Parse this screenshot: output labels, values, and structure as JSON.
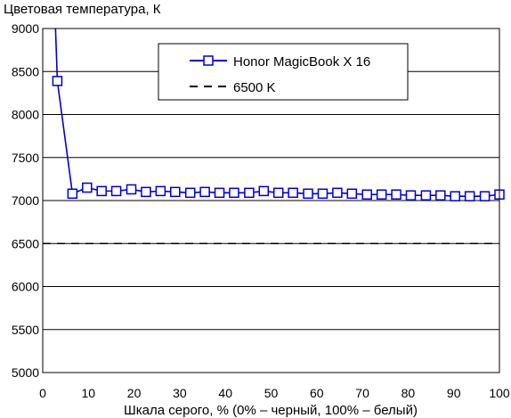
{
  "chart_data": {
    "type": "line",
    "ylabel": "Цветовая температура, К",
    "xlabel": "Шкала серого, % (0% – черный, 100% – белый)",
    "xlim": [
      0,
      100
    ],
    "ylim": [
      5000,
      9000
    ],
    "xticks": [
      0,
      10,
      20,
      30,
      40,
      50,
      60,
      70,
      80,
      90,
      100
    ],
    "yticks": [
      5000,
      5500,
      6000,
      6500,
      7000,
      7500,
      8000,
      8500,
      9000
    ],
    "grid": true,
    "legend_position": "top-right",
    "series": [
      {
        "name": "Honor MagicBook X 16",
        "color": "#0000cc",
        "marker": "square",
        "x": [
          2.8,
          3.2,
          6.5,
          9.7,
          12.9,
          16.1,
          19.4,
          22.6,
          25.8,
          29.0,
          32.3,
          35.5,
          38.7,
          41.9,
          45.2,
          48.4,
          51.6,
          54.8,
          58.1,
          61.3,
          64.5,
          67.7,
          71.0,
          74.2,
          77.4,
          80.6,
          83.9,
          87.1,
          90.3,
          93.5,
          96.8,
          100
        ],
        "y": [
          9000,
          8390,
          7080,
          7150,
          7110,
          7110,
          7130,
          7100,
          7110,
          7100,
          7090,
          7100,
          7090,
          7090,
          7090,
          7110,
          7090,
          7090,
          7080,
          7080,
          7090,
          7080,
          7070,
          7070,
          7070,
          7060,
          7060,
          7060,
          7050,
          7050,
          7050,
          7070
        ]
      },
      {
        "name": "6500 K",
        "color": "#000000",
        "dash": true,
        "x": [
          0,
          100
        ],
        "y": [
          6500,
          6500
        ]
      }
    ]
  }
}
